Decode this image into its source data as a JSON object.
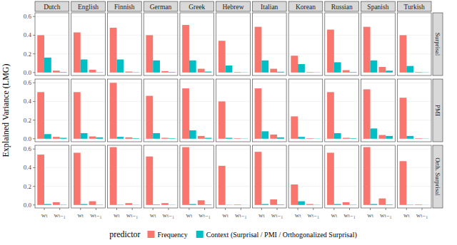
{
  "chart_data": {
    "type": "bar",
    "y_label": "Explained Variance (LMG)",
    "legend_title": "predictor",
    "columns": [
      "Dutch",
      "English",
      "Finnish",
      "German",
      "Greek",
      "Hebrew",
      "Italian",
      "Korean",
      "Russian",
      "Spanish",
      "Turkish"
    ],
    "rows": [
      "Surprisal",
      "PMI",
      "Orth. Surprisal"
    ],
    "categories": [
      "wₜ",
      "wₜ₋₁"
    ],
    "ylim": [
      -0.032,
      0.64
    ],
    "yticks": [
      {
        "value": 0,
        "label": "0.0"
      },
      0.2,
      0.4,
      0.6
    ],
    "grid": true,
    "legend": "bottom",
    "series": [
      {
        "name": "Frequency",
        "color": "#F8766D",
        "values": [
          [
            [
              0.4,
              0.02
            ],
            [
              0.43,
              0.03
            ],
            [
              0.48,
              0.01
            ],
            [
              0.4,
              0.015
            ],
            [
              0.51,
              0.04
            ],
            [
              0.34,
              0.005
            ],
            [
              0.49,
              0.04
            ],
            [
              0.18,
              0.005
            ],
            [
              0.46,
              0.025
            ],
            [
              0.49,
              0.06
            ],
            [
              0.4,
              0.005
            ]
          ],
          [
            [
              0.5,
              0.02
            ],
            [
              0.5,
              0.025
            ],
            [
              0.6,
              0.015
            ],
            [
              0.46,
              0.01
            ],
            [
              0.54,
              0.03
            ],
            [
              0.4,
              0.005
            ],
            [
              0.54,
              0.045
            ],
            [
              0.24,
              0.005
            ],
            [
              0.5,
              0.01
            ],
            [
              0.53,
              0.04
            ],
            [
              0.44,
              0.005
            ]
          ],
          [
            [
              0.54,
              0.03
            ],
            [
              0.56,
              0.04
            ],
            [
              0.62,
              0.02
            ],
            [
              0.52,
              0.02
            ],
            [
              0.62,
              0.05
            ],
            [
              0.42,
              0.005
            ],
            [
              0.57,
              0.06
            ],
            [
              0.22,
              0.01
            ],
            [
              0.56,
              0.03
            ],
            [
              0.62,
              0.07
            ],
            [
              0.47,
              0.005
            ]
          ]
        ]
      },
      {
        "name": "Context (Surprisal / PMI / Orthogonalized Surprisal)",
        "color": "#00BFC4",
        "values": [
          [
            [
              0.16,
              0.005
            ],
            [
              0.14,
              0.003
            ],
            [
              0.14,
              0.003
            ],
            [
              0.13,
              0.005
            ],
            [
              0.13,
              0.01
            ],
            [
              0.075,
              0.002
            ],
            [
              0.13,
              0.008
            ],
            [
              0.09,
              0.002
            ],
            [
              0.11,
              0.005
            ],
            [
              0.13,
              0.02
            ],
            [
              0.07,
              0.002
            ]
          ],
          [
            [
              0.05,
              0.01
            ],
            [
              0.06,
              0.015
            ],
            [
              0.02,
              0.005
            ],
            [
              0.06,
              0.005
            ],
            [
              0.09,
              0.01
            ],
            [
              0.01,
              0.002
            ],
            [
              0.08,
              0.015
            ],
            [
              0.02,
              0.002
            ],
            [
              0.06,
              0.005
            ],
            [
              0.11,
              0.03
            ],
            [
              0.03,
              0.002
            ]
          ],
          [
            [
              0.01,
              0.003
            ],
            [
              0.01,
              0.003
            ],
            [
              0.003,
              0.002
            ],
            [
              0.005,
              0.002
            ],
            [
              0.01,
              0.005
            ],
            [
              0.002,
              0.001
            ],
            [
              0.01,
              0.005
            ],
            [
              0.04,
              0.002
            ],
            [
              0.01,
              0.003
            ],
            [
              0.01,
              0.005
            ],
            [
              0.003,
              0.001
            ]
          ]
        ]
      }
    ]
  }
}
